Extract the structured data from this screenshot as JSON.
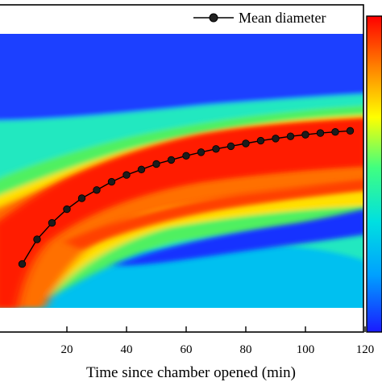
{
  "chart_data": {
    "type": "heatmap",
    "xlabel": "Time since chamber opened (min)",
    "xlim": [
      0,
      120
    ],
    "x_ticks": [
      20,
      40,
      60,
      80,
      100,
      120
    ],
    "colormap": [
      "#1a1aff",
      "#00a0ff",
      "#00e0e0",
      "#40ff80",
      "#ffff00",
      "#ff8000",
      "#ff0000"
    ],
    "series": [
      {
        "name": "Mean diameter",
        "color": "#000000",
        "marker": "circle",
        "x": [
          5,
          10,
          15,
          20,
          25,
          30,
          35,
          40,
          45,
          50,
          55,
          60,
          65,
          70,
          75,
          80,
          85,
          90,
          95,
          100,
          105,
          110,
          115
        ],
        "y": [
          0.16,
          0.25,
          0.31,
          0.36,
          0.4,
          0.43,
          0.46,
          0.485,
          0.505,
          0.525,
          0.54,
          0.555,
          0.568,
          0.58,
          0.59,
          0.6,
          0.61,
          0.618,
          0.626,
          0.632,
          0.638,
          0.642,
          0.646
        ]
      }
    ],
    "legend": {
      "position": "top-right",
      "entries": [
        "Mean diameter"
      ]
    },
    "grid": false
  }
}
